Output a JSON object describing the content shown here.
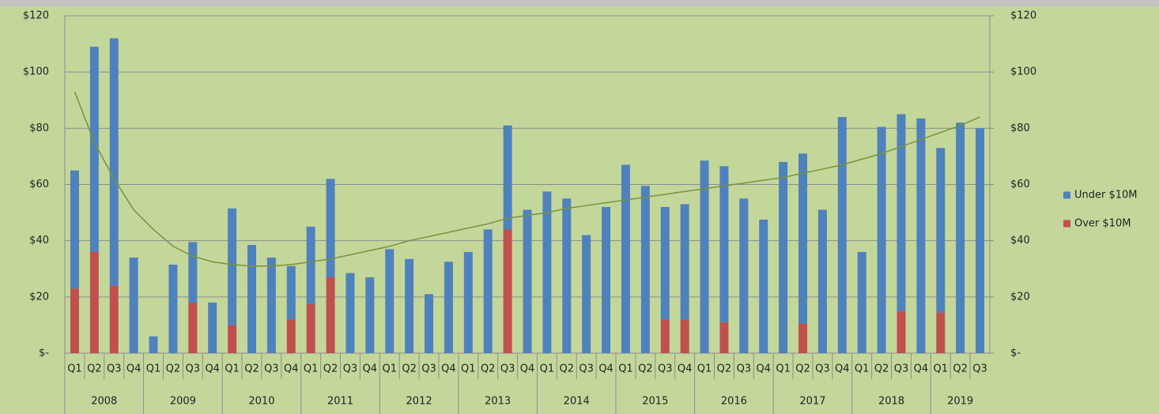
{
  "chart_data": {
    "type": "stacked_bar",
    "categories": [
      "Q1",
      "Q2",
      "Q3",
      "Q4",
      "Q1",
      "Q2",
      "Q3",
      "Q4",
      "Q1",
      "Q2",
      "Q3",
      "Q4",
      "Q1",
      "Q2",
      "Q3",
      "Q4",
      "Q1",
      "Q2",
      "Q3",
      "Q4",
      "Q1",
      "Q2",
      "Q3",
      "Q4",
      "Q1",
      "Q2",
      "Q3",
      "Q4",
      "Q1",
      "Q2",
      "Q3",
      "Q4",
      "Q1",
      "Q2",
      "Q3",
      "Q4",
      "Q1",
      "Q2",
      "Q3",
      "Q4",
      "Q1",
      "Q2",
      "Q3",
      "Q4",
      "Q1",
      "Q2",
      "Q3"
    ],
    "category_groups": [
      "2008",
      "2009",
      "2010",
      "2011",
      "2012",
      "2013",
      "2014",
      "2015",
      "2016",
      "2017",
      "2018",
      "2019"
    ],
    "series": [
      {
        "name": "Over $10M",
        "color": "#c0504d",
        "values": [
          23,
          36,
          24,
          0,
          0,
          0,
          18,
          0,
          10,
          0,
          0,
          12,
          17.5,
          27,
          0,
          0,
          0,
          0,
          0,
          0,
          0,
          0,
          44,
          0,
          0,
          0,
          0,
          0,
          0,
          0,
          12,
          12,
          0,
          11,
          0,
          0,
          0,
          10.5,
          0,
          0,
          0,
          0,
          15,
          0,
          14.5,
          0,
          0
        ]
      },
      {
        "name": "Under $10M",
        "color": "#4f81bd",
        "values": [
          42,
          73,
          88,
          34,
          6,
          31.5,
          21.5,
          18,
          41.5,
          38.5,
          34,
          19,
          27.5,
          35,
          28.5,
          27,
          37,
          33.5,
          21,
          32.5,
          36,
          44,
          37,
          51,
          57.5,
          55,
          42,
          52,
          67,
          59.5,
          40,
          41,
          68.5,
          55.5,
          55,
          47.5,
          68,
          60.5,
          51,
          84,
          36,
          80.5,
          70,
          83.5,
          58.5,
          82,
          80
        ]
      }
    ],
    "trendline": {
      "color": "#77933c",
      "values": [
        93,
        75,
        62,
        51,
        44,
        38,
        34.5,
        32.5,
        31.5,
        31,
        31,
        31.5,
        32.5,
        33.5,
        35,
        36.5,
        38,
        40,
        41.5,
        43,
        44.5,
        46,
        48,
        49,
        50,
        51.5,
        52.5,
        53.5,
        54.5,
        55.5,
        56.5,
        57.5,
        58.5,
        59.5,
        60.5,
        61.5,
        62.5,
        64,
        65.5,
        67,
        69,
        71,
        73.5,
        76,
        78.5,
        81,
        84
      ]
    },
    "ylim": [
      0,
      120
    ],
    "yticks": [
      {
        "value": 0,
        "label": "$-"
      },
      {
        "value": 20,
        "label": "$20"
      },
      {
        "value": 40,
        "label": "$40"
      },
      {
        "value": 60,
        "label": "$60"
      },
      {
        "value": 80,
        "label": "$80"
      },
      {
        "value": 100,
        "label": "$100"
      },
      {
        "value": 120,
        "label": "$120"
      }
    ],
    "y2lim": [
      0,
      120
    ],
    "y2ticks": [
      {
        "value": 0,
        "label": "$-"
      },
      {
        "value": 20,
        "label": "$20"
      },
      {
        "value": 40,
        "label": "$40"
      },
      {
        "value": 60,
        "label": "$60"
      },
      {
        "value": 80,
        "label": "$80"
      },
      {
        "value": 100,
        "label": "$100"
      },
      {
        "value": 120,
        "label": "$120"
      }
    ],
    "grid": true,
    "legend": "right"
  }
}
